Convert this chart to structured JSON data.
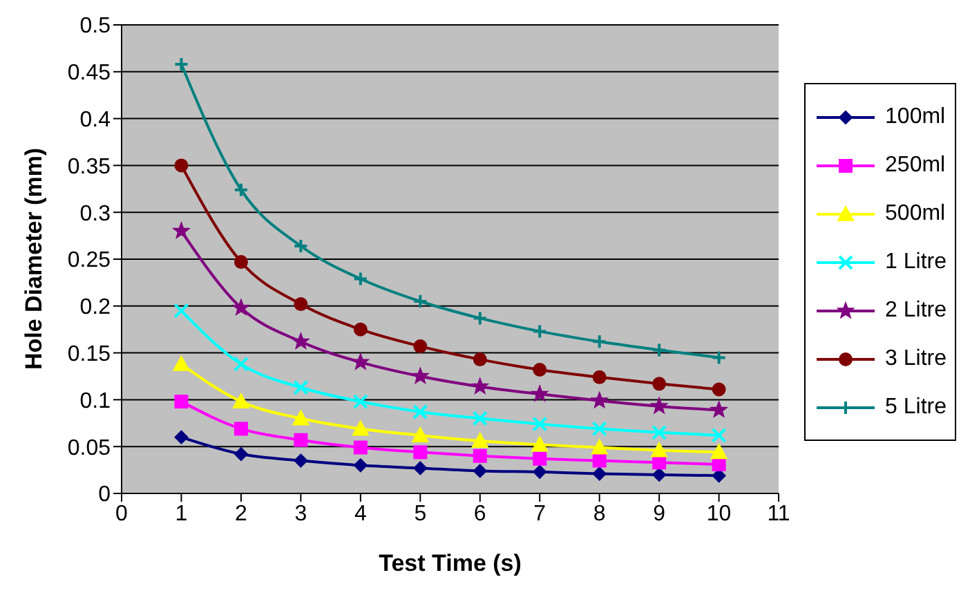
{
  "chart_data": {
    "type": "line",
    "xlabel": "Test Time (s)",
    "ylabel": "Hole Diameter (mm)",
    "x": [
      1,
      2,
      3,
      4,
      5,
      6,
      7,
      8,
      9,
      10
    ],
    "xlim": [
      0,
      11
    ],
    "xticks": [
      0,
      1,
      2,
      3,
      4,
      5,
      6,
      7,
      8,
      9,
      10,
      11
    ],
    "ylim": [
      0,
      0.5
    ],
    "yticks": [
      0,
      0.05,
      0.1,
      0.15,
      0.2,
      0.25,
      0.3,
      0.35,
      0.4,
      0.45,
      0.5
    ],
    "grid": "y",
    "legend": "right",
    "series": [
      {
        "name": "100ml",
        "color": "#000080",
        "marker": "diamond",
        "values": [
          0.06,
          0.042,
          0.035,
          0.03,
          0.027,
          0.024,
          0.023,
          0.021,
          0.02,
          0.019
        ]
      },
      {
        "name": "250ml",
        "color": "#ff00ff",
        "marker": "square",
        "values": [
          0.098,
          0.069,
          0.057,
          0.049,
          0.044,
          0.04,
          0.037,
          0.035,
          0.033,
          0.031
        ]
      },
      {
        "name": "500ml",
        "color": "#ffff00",
        "marker": "triangle",
        "values": [
          0.138,
          0.098,
          0.08,
          0.069,
          0.062,
          0.056,
          0.052,
          0.049,
          0.046,
          0.044
        ]
      },
      {
        "name": "1 Litre",
        "color": "#00ffff",
        "marker": "cross",
        "values": [
          0.195,
          0.138,
          0.113,
          0.098,
          0.087,
          0.08,
          0.074,
          0.069,
          0.065,
          0.062
        ]
      },
      {
        "name": "2 Litre",
        "color": "#800080",
        "marker": "star",
        "values": [
          0.28,
          0.198,
          0.162,
          0.14,
          0.125,
          0.114,
          0.106,
          0.099,
          0.093,
          0.089
        ]
      },
      {
        "name": "3 Litre",
        "color": "#800000",
        "marker": "circle",
        "values": [
          0.35,
          0.247,
          0.202,
          0.175,
          0.157,
          0.143,
          0.132,
          0.124,
          0.117,
          0.111
        ]
      },
      {
        "name": "5 Litre",
        "color": "#008080",
        "marker": "plus",
        "values": [
          0.458,
          0.324,
          0.264,
          0.229,
          0.205,
          0.187,
          0.173,
          0.162,
          0.153,
          0.145
        ]
      }
    ]
  }
}
